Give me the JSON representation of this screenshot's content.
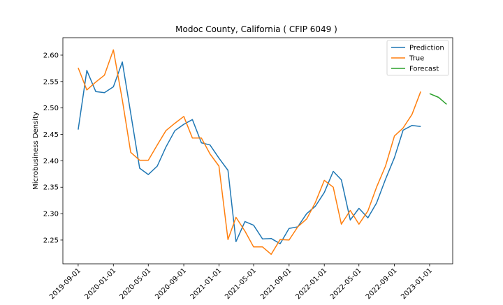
{
  "chart_data": {
    "type": "line",
    "title": "Modoc County, California ( CFIP 6049 )",
    "xlabel": "",
    "ylabel": "Microbusiness Density",
    "x_tick_labels": [
      "2019-09-01",
      "2020-01-01",
      "2020-05-01",
      "2020-09-01",
      "2021-01-01",
      "2021-05-01",
      "2021-09-01",
      "2022-01-01",
      "2022-05-01",
      "2022-09-01",
      "2023-01-01"
    ],
    "y_ticks": [
      2.25,
      2.3,
      2.35,
      2.4,
      2.45,
      2.5,
      2.55,
      2.6
    ],
    "xlim": [
      "2019-07-10",
      "2023-03-22"
    ],
    "ylim": [
      2.205,
      2.633
    ],
    "grid": false,
    "legend_position": "top-right",
    "series": [
      {
        "name": "Prediction",
        "color": "#1f77b4",
        "x": [
          "2019-09-01",
          "2019-10-01",
          "2019-11-01",
          "2019-12-01",
          "2020-01-01",
          "2020-02-01",
          "2020-03-01",
          "2020-04-01",
          "2020-05-01",
          "2020-06-01",
          "2020-07-01",
          "2020-08-01",
          "2020-09-01",
          "2020-10-01",
          "2020-11-01",
          "2020-12-01",
          "2021-01-01",
          "2021-02-01",
          "2021-03-01",
          "2021-04-01",
          "2021-05-01",
          "2021-06-01",
          "2021-07-01",
          "2021-08-01",
          "2021-09-01",
          "2021-10-01",
          "2021-11-01",
          "2021-12-01",
          "2022-01-01",
          "2022-02-01",
          "2022-03-01",
          "2022-04-01",
          "2022-05-01",
          "2022-06-01",
          "2022-07-01",
          "2022-08-01",
          "2022-09-01",
          "2022-10-01",
          "2022-11-01",
          "2022-12-01"
        ],
        "y": [
          2.459,
          2.571,
          2.531,
          2.529,
          2.54,
          2.587,
          2.49,
          2.386,
          2.374,
          2.39,
          2.426,
          2.457,
          2.469,
          2.478,
          2.434,
          2.43,
          2.405,
          2.382,
          2.247,
          2.285,
          2.278,
          2.252,
          2.253,
          2.243,
          2.272,
          2.275,
          2.3,
          2.314,
          2.34,
          2.38,
          2.364,
          2.288,
          2.31,
          2.292,
          2.32,
          2.365,
          2.406,
          2.458,
          2.467,
          2.465
        ]
      },
      {
        "name": "True",
        "color": "#ff7f0e",
        "x": [
          "2019-09-01",
          "2019-10-01",
          "2019-11-01",
          "2019-12-01",
          "2020-01-01",
          "2020-02-01",
          "2020-03-01",
          "2020-04-01",
          "2020-05-01",
          "2020-06-01",
          "2020-07-01",
          "2020-08-01",
          "2020-09-01",
          "2020-10-01",
          "2020-11-01",
          "2020-12-01",
          "2021-01-01",
          "2021-02-01",
          "2021-03-01",
          "2021-04-01",
          "2021-05-01",
          "2021-06-01",
          "2021-07-01",
          "2021-08-01",
          "2021-09-01",
          "2021-10-01",
          "2021-11-01",
          "2021-12-01",
          "2022-01-01",
          "2022-02-01",
          "2022-03-01",
          "2022-04-01",
          "2022-05-01",
          "2022-06-01",
          "2022-07-01",
          "2022-08-01",
          "2022-09-01",
          "2022-10-01",
          "2022-11-01",
          "2022-12-01"
        ],
        "y": [
          2.576,
          2.534,
          2.549,
          2.562,
          2.61,
          2.515,
          2.416,
          2.401,
          2.401,
          2.43,
          2.457,
          2.471,
          2.484,
          2.443,
          2.443,
          2.413,
          2.39,
          2.251,
          2.293,
          2.267,
          2.237,
          2.237,
          2.223,
          2.251,
          2.25,
          2.275,
          2.29,
          2.321,
          2.363,
          2.35,
          2.28,
          2.306,
          2.28,
          2.305,
          2.35,
          2.39,
          2.447,
          2.462,
          2.488,
          2.531
        ]
      },
      {
        "name": "Forecast",
        "color": "#2ca02c",
        "x": [
          "2023-01-01",
          "2023-02-01",
          "2023-03-01"
        ],
        "y": [
          2.527,
          2.52,
          2.507
        ]
      }
    ]
  }
}
